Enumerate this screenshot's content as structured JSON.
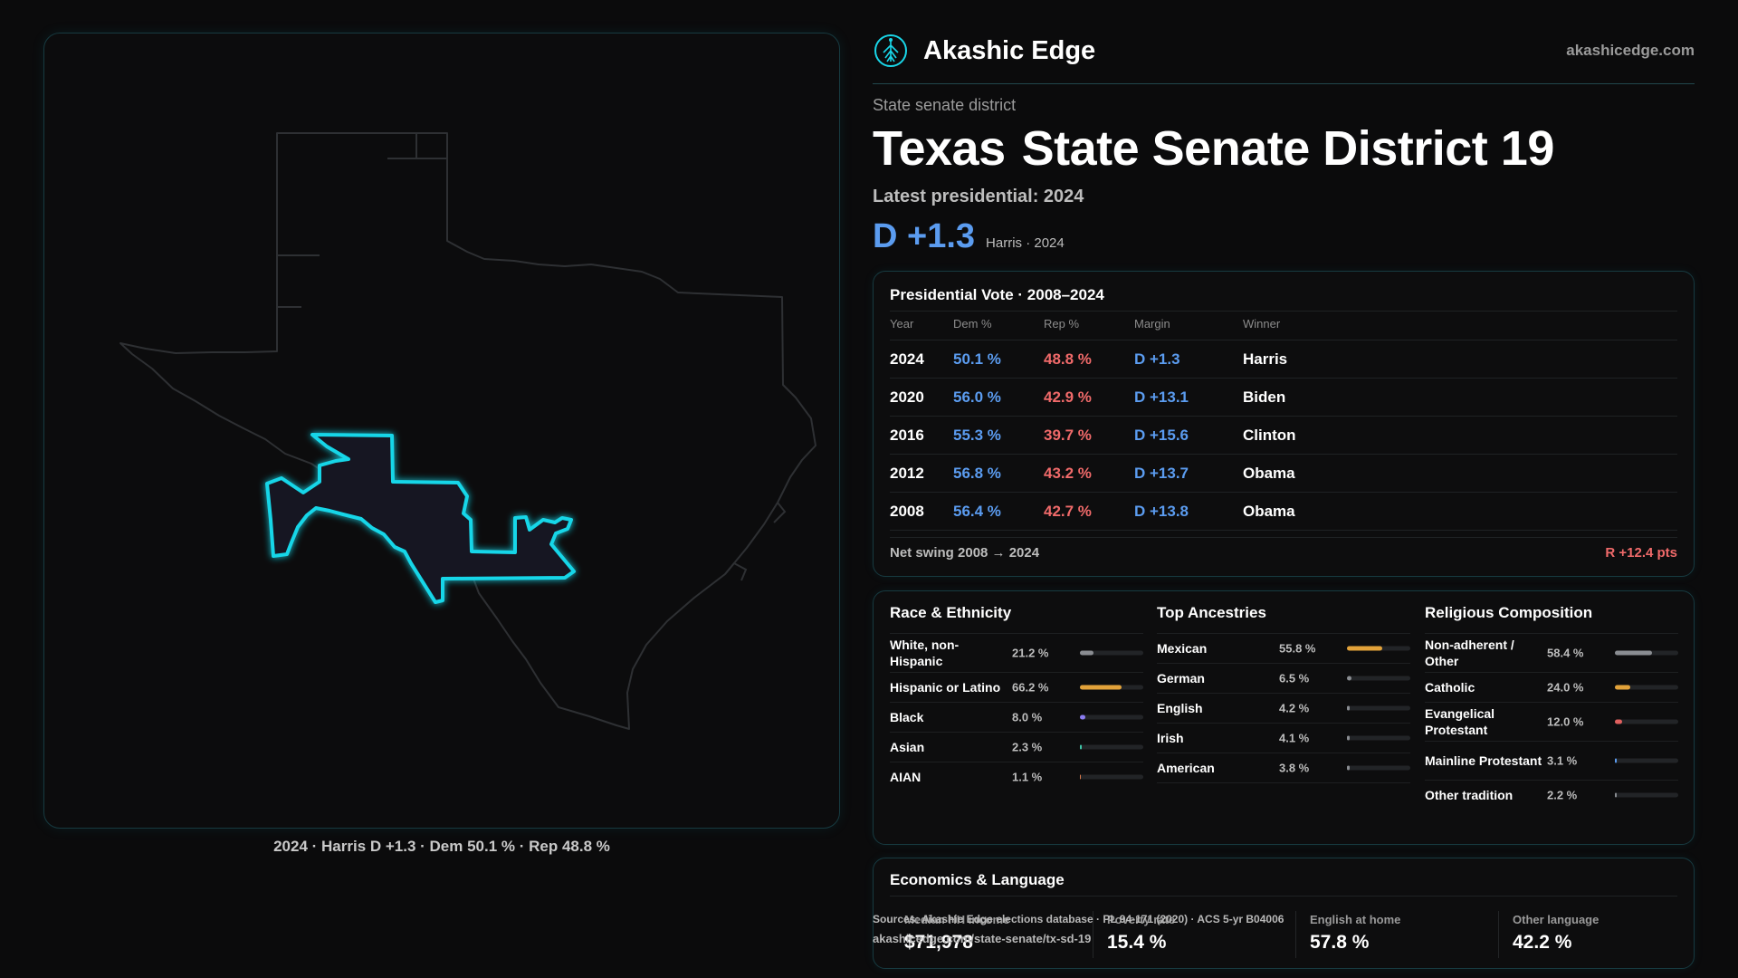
{
  "brand": {
    "name": "Akashic Edge",
    "url": "akashicedge.com",
    "logo_icon": "tree-emblem-icon",
    "accent": "#19d6e8"
  },
  "district": {
    "kind": "State senate district",
    "state": "Texas",
    "name": "State Senate District 19",
    "latest_label": "Latest presidential: 2024",
    "latest_margin": "D +1.3",
    "latest_sub": "Harris · 2024"
  },
  "map": {
    "caption": "2024 · Harris D +1.3 · Dem 50.1 % · Rep 48.8 %",
    "highlight_color": "#19d6e8"
  },
  "presidential": {
    "title": "Presidential Vote · 2008–2024",
    "headers": {
      "year": "Year",
      "dem": "Dem %",
      "rep": "Rep %",
      "margin": "Margin",
      "winner": "Winner"
    },
    "rows": [
      {
        "year": "2024",
        "dem": "50.1 %",
        "rep": "48.8 %",
        "margin": "D +1.3",
        "winner": "Harris"
      },
      {
        "year": "2020",
        "dem": "56.0 %",
        "rep": "42.9 %",
        "margin": "D +13.1",
        "winner": "Biden"
      },
      {
        "year": "2016",
        "dem": "55.3 %",
        "rep": "39.7 %",
        "margin": "D +15.6",
        "winner": "Clinton"
      },
      {
        "year": "2012",
        "dem": "56.8 %",
        "rep": "43.2 %",
        "margin": "D +13.7",
        "winner": "Obama"
      },
      {
        "year": "2008",
        "dem": "56.4 %",
        "rep": "42.7 %",
        "margin": "D +13.8",
        "winner": "Obama"
      }
    ],
    "swing_label": "Net swing 2008 → 2024",
    "swing_value": "R +12.4 pts"
  },
  "race": {
    "title": "Race & Ethnicity",
    "rows": [
      {
        "label": "White, non-Hispanic",
        "value": "21.2 %",
        "share": 0.212,
        "color": "#8a8d92"
      },
      {
        "label": "Hispanic or Latino",
        "value": "66.2 %",
        "share": 0.662,
        "color": "#e2a23a"
      },
      {
        "label": "Black",
        "value": "8.0 %",
        "share": 0.08,
        "color": "#8b7cf0"
      },
      {
        "label": "Asian",
        "value": "2.3 %",
        "share": 0.023,
        "color": "#3fc6a8"
      },
      {
        "label": "AIAN",
        "value": "1.1 %",
        "share": 0.011,
        "color": "#d9784a"
      }
    ]
  },
  "ancestry": {
    "title": "Top Ancestries",
    "rows": [
      {
        "label": "Mexican",
        "value": "55.8 %",
        "share": 0.558,
        "color": "#e2a23a"
      },
      {
        "label": "German",
        "value": "6.5 %",
        "share": 0.065,
        "color": "#8a8d92"
      },
      {
        "label": "English",
        "value": "4.2 %",
        "share": 0.042,
        "color": "#8a8d92"
      },
      {
        "label": "Irish",
        "value": "4.1 %",
        "share": 0.041,
        "color": "#8a8d92"
      },
      {
        "label": "American",
        "value": "3.8 %",
        "share": 0.038,
        "color": "#8a8d92"
      }
    ]
  },
  "religion": {
    "title": "Religious Composition",
    "rows": [
      {
        "label": "Non-adherent / Other",
        "value": "58.4 %",
        "share": 0.584,
        "color": "#8a8d92"
      },
      {
        "label": "Catholic",
        "value": "24.0 %",
        "share": 0.24,
        "color": "#e2a23a"
      },
      {
        "label": "Evangelical Protestant",
        "value": "12.0 %",
        "share": 0.12,
        "color": "#e0605e"
      },
      {
        "label": "Mainline Protestant",
        "value": "3.1 %",
        "share": 0.031,
        "color": "#5b9cf0"
      },
      {
        "label": "Other tradition",
        "value": "2.2 %",
        "share": 0.022,
        "color": "#8a8d92"
      }
    ]
  },
  "economics": {
    "title": "Economics & Language",
    "stats": [
      {
        "label": "Median HH income",
        "value": "$71,978"
      },
      {
        "label": "Poverty rate",
        "value": "15.4 %"
      },
      {
        "label": "English at home",
        "value": "57.8 %"
      },
      {
        "label": "Other language",
        "value": "42.2 %"
      }
    ]
  },
  "footer": {
    "sources": "Sources: Akashic Edge elections database · PL 94-171 (2020) · ACS 5-yr B04006",
    "url": "akashicedge.com/state-senate/tx-sd-19"
  }
}
